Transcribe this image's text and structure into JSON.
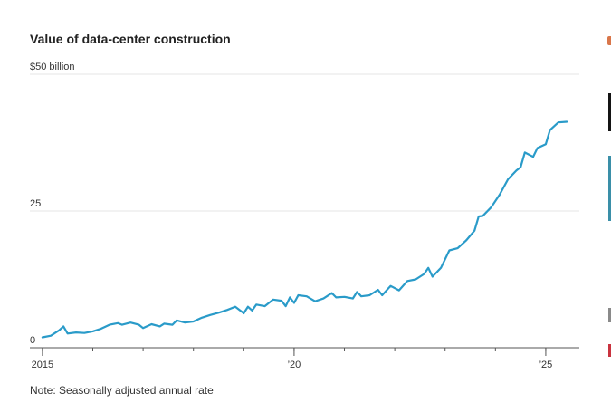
{
  "title": "Value of data-center construction",
  "note": "Note: Seasonally adjusted annual rate",
  "colors": {
    "line": "#2a9bc9",
    "grid": "#e6e6e6",
    "axis": "#555555",
    "edge_orange": "#d9764a",
    "edge_dark": "#141414",
    "edge_teal": "#3a8fa8",
    "edge_red": "#c9333f",
    "edge_gray": "#8a8a8a"
  },
  "chart_data": {
    "type": "line",
    "title": "Value of data-center construction",
    "xlabel": "",
    "ylabel": "",
    "ylim": [
      0,
      50
    ],
    "xlim": [
      "2014-10",
      "2025-09"
    ],
    "grid": true,
    "y_ticks": [
      {
        "value": 0,
        "label": "0"
      },
      {
        "value": 25,
        "label": "25"
      },
      {
        "value": 50,
        "label": "$50 billion"
      }
    ],
    "x_ticks": [
      {
        "value": "2015-01",
        "label": "2015"
      },
      {
        "value": "2020-01",
        "label": "’20"
      },
      {
        "value": "2025-01",
        "label": "’25"
      }
    ],
    "series": [
      {
        "values": [
          [
            "2015-01",
            1.9
          ],
          [
            "2015-03",
            2.2
          ],
          [
            "2015-05",
            3.2
          ],
          [
            "2015-06",
            3.9
          ],
          [
            "2015-07",
            2.6
          ],
          [
            "2015-09",
            2.8
          ],
          [
            "2015-11",
            2.7
          ],
          [
            "2016-01",
            3.0
          ],
          [
            "2016-03",
            3.5
          ],
          [
            "2016-05",
            4.2
          ],
          [
            "2016-07",
            4.5
          ],
          [
            "2016-08",
            4.2
          ],
          [
            "2016-10",
            4.6
          ],
          [
            "2016-12",
            4.2
          ],
          [
            "2017-01",
            3.6
          ],
          [
            "2017-03",
            4.3
          ],
          [
            "2017-05",
            3.9
          ],
          [
            "2017-06",
            4.4
          ],
          [
            "2017-08",
            4.2
          ],
          [
            "2017-09",
            5.0
          ],
          [
            "2017-11",
            4.6
          ],
          [
            "2018-01",
            4.8
          ],
          [
            "2018-03",
            5.5
          ],
          [
            "2018-05",
            6.0
          ],
          [
            "2018-07",
            6.4
          ],
          [
            "2018-09",
            6.9
          ],
          [
            "2018-11",
            7.5
          ],
          [
            "2019-01",
            6.3
          ],
          [
            "2019-02",
            7.5
          ],
          [
            "2019-03",
            6.8
          ],
          [
            "2019-04",
            7.9
          ],
          [
            "2019-06",
            7.6
          ],
          [
            "2019-08",
            8.8
          ],
          [
            "2019-10",
            8.6
          ],
          [
            "2019-11",
            7.6
          ],
          [
            "2019-12",
            9.2
          ],
          [
            "2020-01",
            8.2
          ],
          [
            "2020-02",
            9.6
          ],
          [
            "2020-04",
            9.4
          ],
          [
            "2020-06",
            8.5
          ],
          [
            "2020-08",
            9.0
          ],
          [
            "2020-10",
            10.0
          ],
          [
            "2020-11",
            9.2
          ],
          [
            "2021-01",
            9.3
          ],
          [
            "2021-03",
            9.0
          ],
          [
            "2021-04",
            10.2
          ],
          [
            "2021-05",
            9.4
          ],
          [
            "2021-07",
            9.6
          ],
          [
            "2021-09",
            10.6
          ],
          [
            "2021-10",
            9.6
          ],
          [
            "2021-12",
            11.3
          ],
          [
            "2022-02",
            10.5
          ],
          [
            "2022-04",
            12.2
          ],
          [
            "2022-06",
            12.5
          ],
          [
            "2022-08",
            13.5
          ],
          [
            "2022-09",
            14.6
          ],
          [
            "2022-10",
            13.0
          ],
          [
            "2022-12",
            14.6
          ],
          [
            "2023-02",
            17.8
          ],
          [
            "2023-04",
            18.2
          ],
          [
            "2023-06",
            19.6
          ],
          [
            "2023-08",
            21.4
          ],
          [
            "2023-09",
            24.0
          ],
          [
            "2023-10",
            24.1
          ],
          [
            "2023-12",
            25.7
          ],
          [
            "2024-02",
            28.0
          ],
          [
            "2024-04",
            30.8
          ],
          [
            "2024-06",
            32.4
          ],
          [
            "2024-07",
            33.0
          ],
          [
            "2024-08",
            35.7
          ],
          [
            "2024-10",
            34.9
          ],
          [
            "2024-11",
            36.5
          ],
          [
            "2025-01",
            37.2
          ],
          [
            "2025-02",
            39.8
          ],
          [
            "2025-04",
            41.2
          ],
          [
            "2025-06",
            41.3
          ]
        ]
      }
    ]
  }
}
